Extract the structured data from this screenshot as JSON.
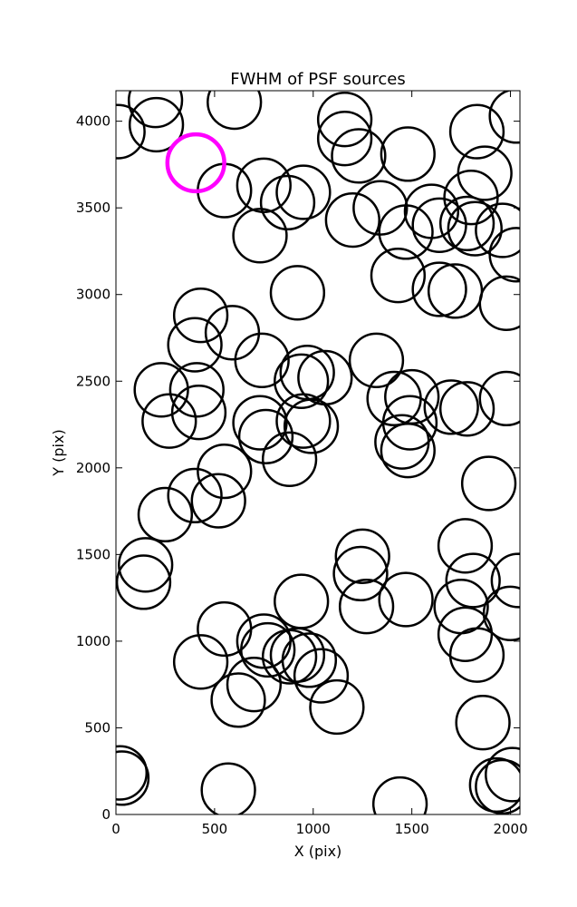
{
  "chart_data": {
    "type": "scatter",
    "title": "FWHM of PSF sources",
    "xlabel": "X (pix)",
    "ylabel": "Y (pix)",
    "xlim": [
      0,
      2048
    ],
    "ylim": [
      0,
      4176
    ],
    "xticks": [
      0,
      500,
      1000,
      1500,
      2000
    ],
    "yticks": [
      0,
      500,
      1000,
      1500,
      2000,
      2500,
      3000,
      3500,
      4000
    ],
    "grid": false,
    "marker": "open-circle",
    "radius": 135,
    "series": [
      {
        "color": "#000000",
        "points": [
          [
            10,
            3940
          ],
          [
            200,
            4120
          ],
          [
            205,
            3980
          ],
          [
            600,
            4110
          ],
          [
            550,
            3600
          ],
          [
            750,
            3630
          ],
          [
            870,
            3530
          ],
          [
            950,
            3590
          ],
          [
            730,
            3340
          ],
          [
            1160,
            4010
          ],
          [
            1160,
            3900
          ],
          [
            1230,
            3800
          ],
          [
            1200,
            3430
          ],
          [
            1340,
            3500
          ],
          [
            1470,
            3360
          ],
          [
            1480,
            3810
          ],
          [
            1600,
            3480
          ],
          [
            1640,
            3400
          ],
          [
            1830,
            3940
          ],
          [
            1870,
            3700
          ],
          [
            2030,
            4030
          ],
          [
            1800,
            3560
          ],
          [
            1780,
            3410
          ],
          [
            1820,
            3380
          ],
          [
            1960,
            3370
          ],
          [
            2030,
            3230
          ],
          [
            1430,
            3110
          ],
          [
            1640,
            3030
          ],
          [
            1720,
            3020
          ],
          [
            1980,
            2950
          ],
          [
            920,
            3010
          ],
          [
            430,
            2880
          ],
          [
            590,
            2780
          ],
          [
            400,
            2710
          ],
          [
            740,
            2620
          ],
          [
            1320,
            2620
          ],
          [
            970,
            2550
          ],
          [
            940,
            2500
          ],
          [
            1060,
            2520
          ],
          [
            230,
            2450
          ],
          [
            410,
            2450
          ],
          [
            420,
            2320
          ],
          [
            270,
            2270
          ],
          [
            730,
            2260
          ],
          [
            760,
            2180
          ],
          [
            950,
            2270
          ],
          [
            990,
            2240
          ],
          [
            880,
            2050
          ],
          [
            1410,
            2400
          ],
          [
            1500,
            2410
          ],
          [
            1490,
            2260
          ],
          [
            1450,
            2150
          ],
          [
            1480,
            2100
          ],
          [
            1700,
            2350
          ],
          [
            1780,
            2340
          ],
          [
            1980,
            2400
          ],
          [
            1890,
            1910
          ],
          [
            550,
            1980
          ],
          [
            520,
            1810
          ],
          [
            400,
            1840
          ],
          [
            250,
            1730
          ],
          [
            150,
            1440
          ],
          [
            140,
            1340
          ],
          [
            1250,
            1490
          ],
          [
            1240,
            1390
          ],
          [
            1270,
            1200
          ],
          [
            940,
            1230
          ],
          [
            1470,
            1240
          ],
          [
            1770,
            1550
          ],
          [
            1810,
            1350
          ],
          [
            2040,
            1350
          ],
          [
            1750,
            1200
          ],
          [
            2000,
            1160
          ],
          [
            1770,
            1040
          ],
          [
            1830,
            920
          ],
          [
            550,
            1070
          ],
          [
            750,
            1000
          ],
          [
            770,
            950
          ],
          [
            430,
            880
          ],
          [
            700,
            750
          ],
          [
            620,
            660
          ],
          [
            880,
            910
          ],
          [
            920,
            920
          ],
          [
            980,
            890
          ],
          [
            1040,
            800
          ],
          [
            1120,
            620
          ],
          [
            1860,
            530
          ],
          [
            20,
            240
          ],
          [
            30,
            210
          ],
          [
            570,
            140
          ],
          [
            1440,
            60
          ],
          [
            1930,
            170
          ],
          [
            1960,
            160
          ],
          [
            2010,
            230
          ]
        ]
      },
      {
        "color": "#ff00ff",
        "points": [
          [
            405,
            3760
          ]
        ]
      }
    ]
  }
}
